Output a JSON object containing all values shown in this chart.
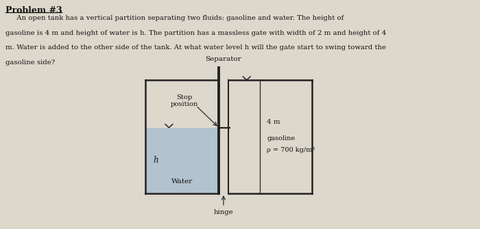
{
  "bg_color": "#ddd8cc",
  "title": "Problem #3",
  "problem_text_lines": [
    "     An open tank has a vertical partition separating two fluids: gasoline and water. The height of",
    "gasoline is 4 m and height of water is h. The partition has a massless gate with width of 2 m and height of 4",
    "m. Water is added to the other side of the tank. At what water level h will the gate start to swing toward the",
    "gasoline side?"
  ],
  "separator_label": "Separator",
  "stop_label_line1": "Stop",
  "stop_label_line2": "position",
  "water_label": "Water",
  "h_label": "h",
  "hinge_label": "hinge",
  "gasoline_line1": "gasoline",
  "gasoline_line2": "ρ = 700 kg/m³",
  "height_label": "4 m",
  "water_color": "#a8bdd0",
  "line_color": "#222222",
  "text_color": "#111111"
}
